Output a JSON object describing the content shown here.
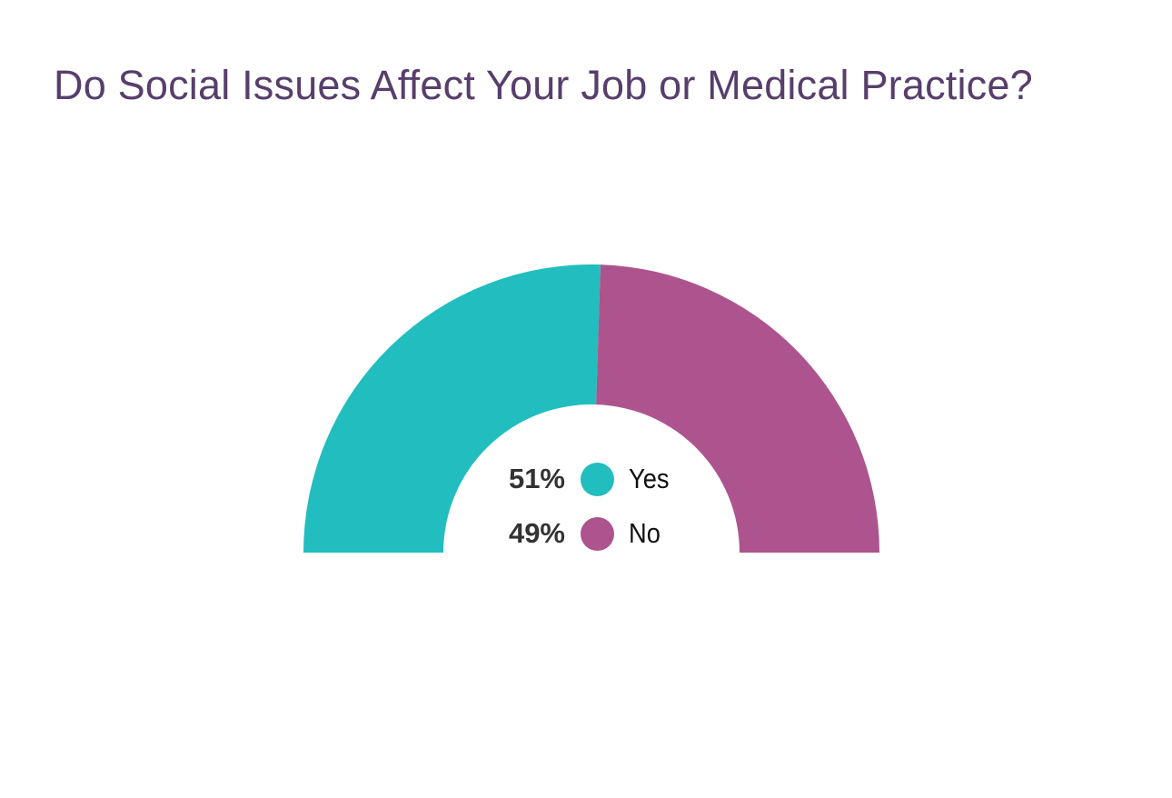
{
  "chart_data": {
    "type": "pie",
    "variant": "semi-donut",
    "title": "Do Social Issues Affect Your Job or Medical Practice?",
    "slices": [
      {
        "name": "Yes",
        "value": 51,
        "label": "51%",
        "color": "#22BDBF"
      },
      {
        "name": "No",
        "value": 49,
        "label": "49%",
        "color": "#AD548E"
      }
    ],
    "legend": "center"
  }
}
